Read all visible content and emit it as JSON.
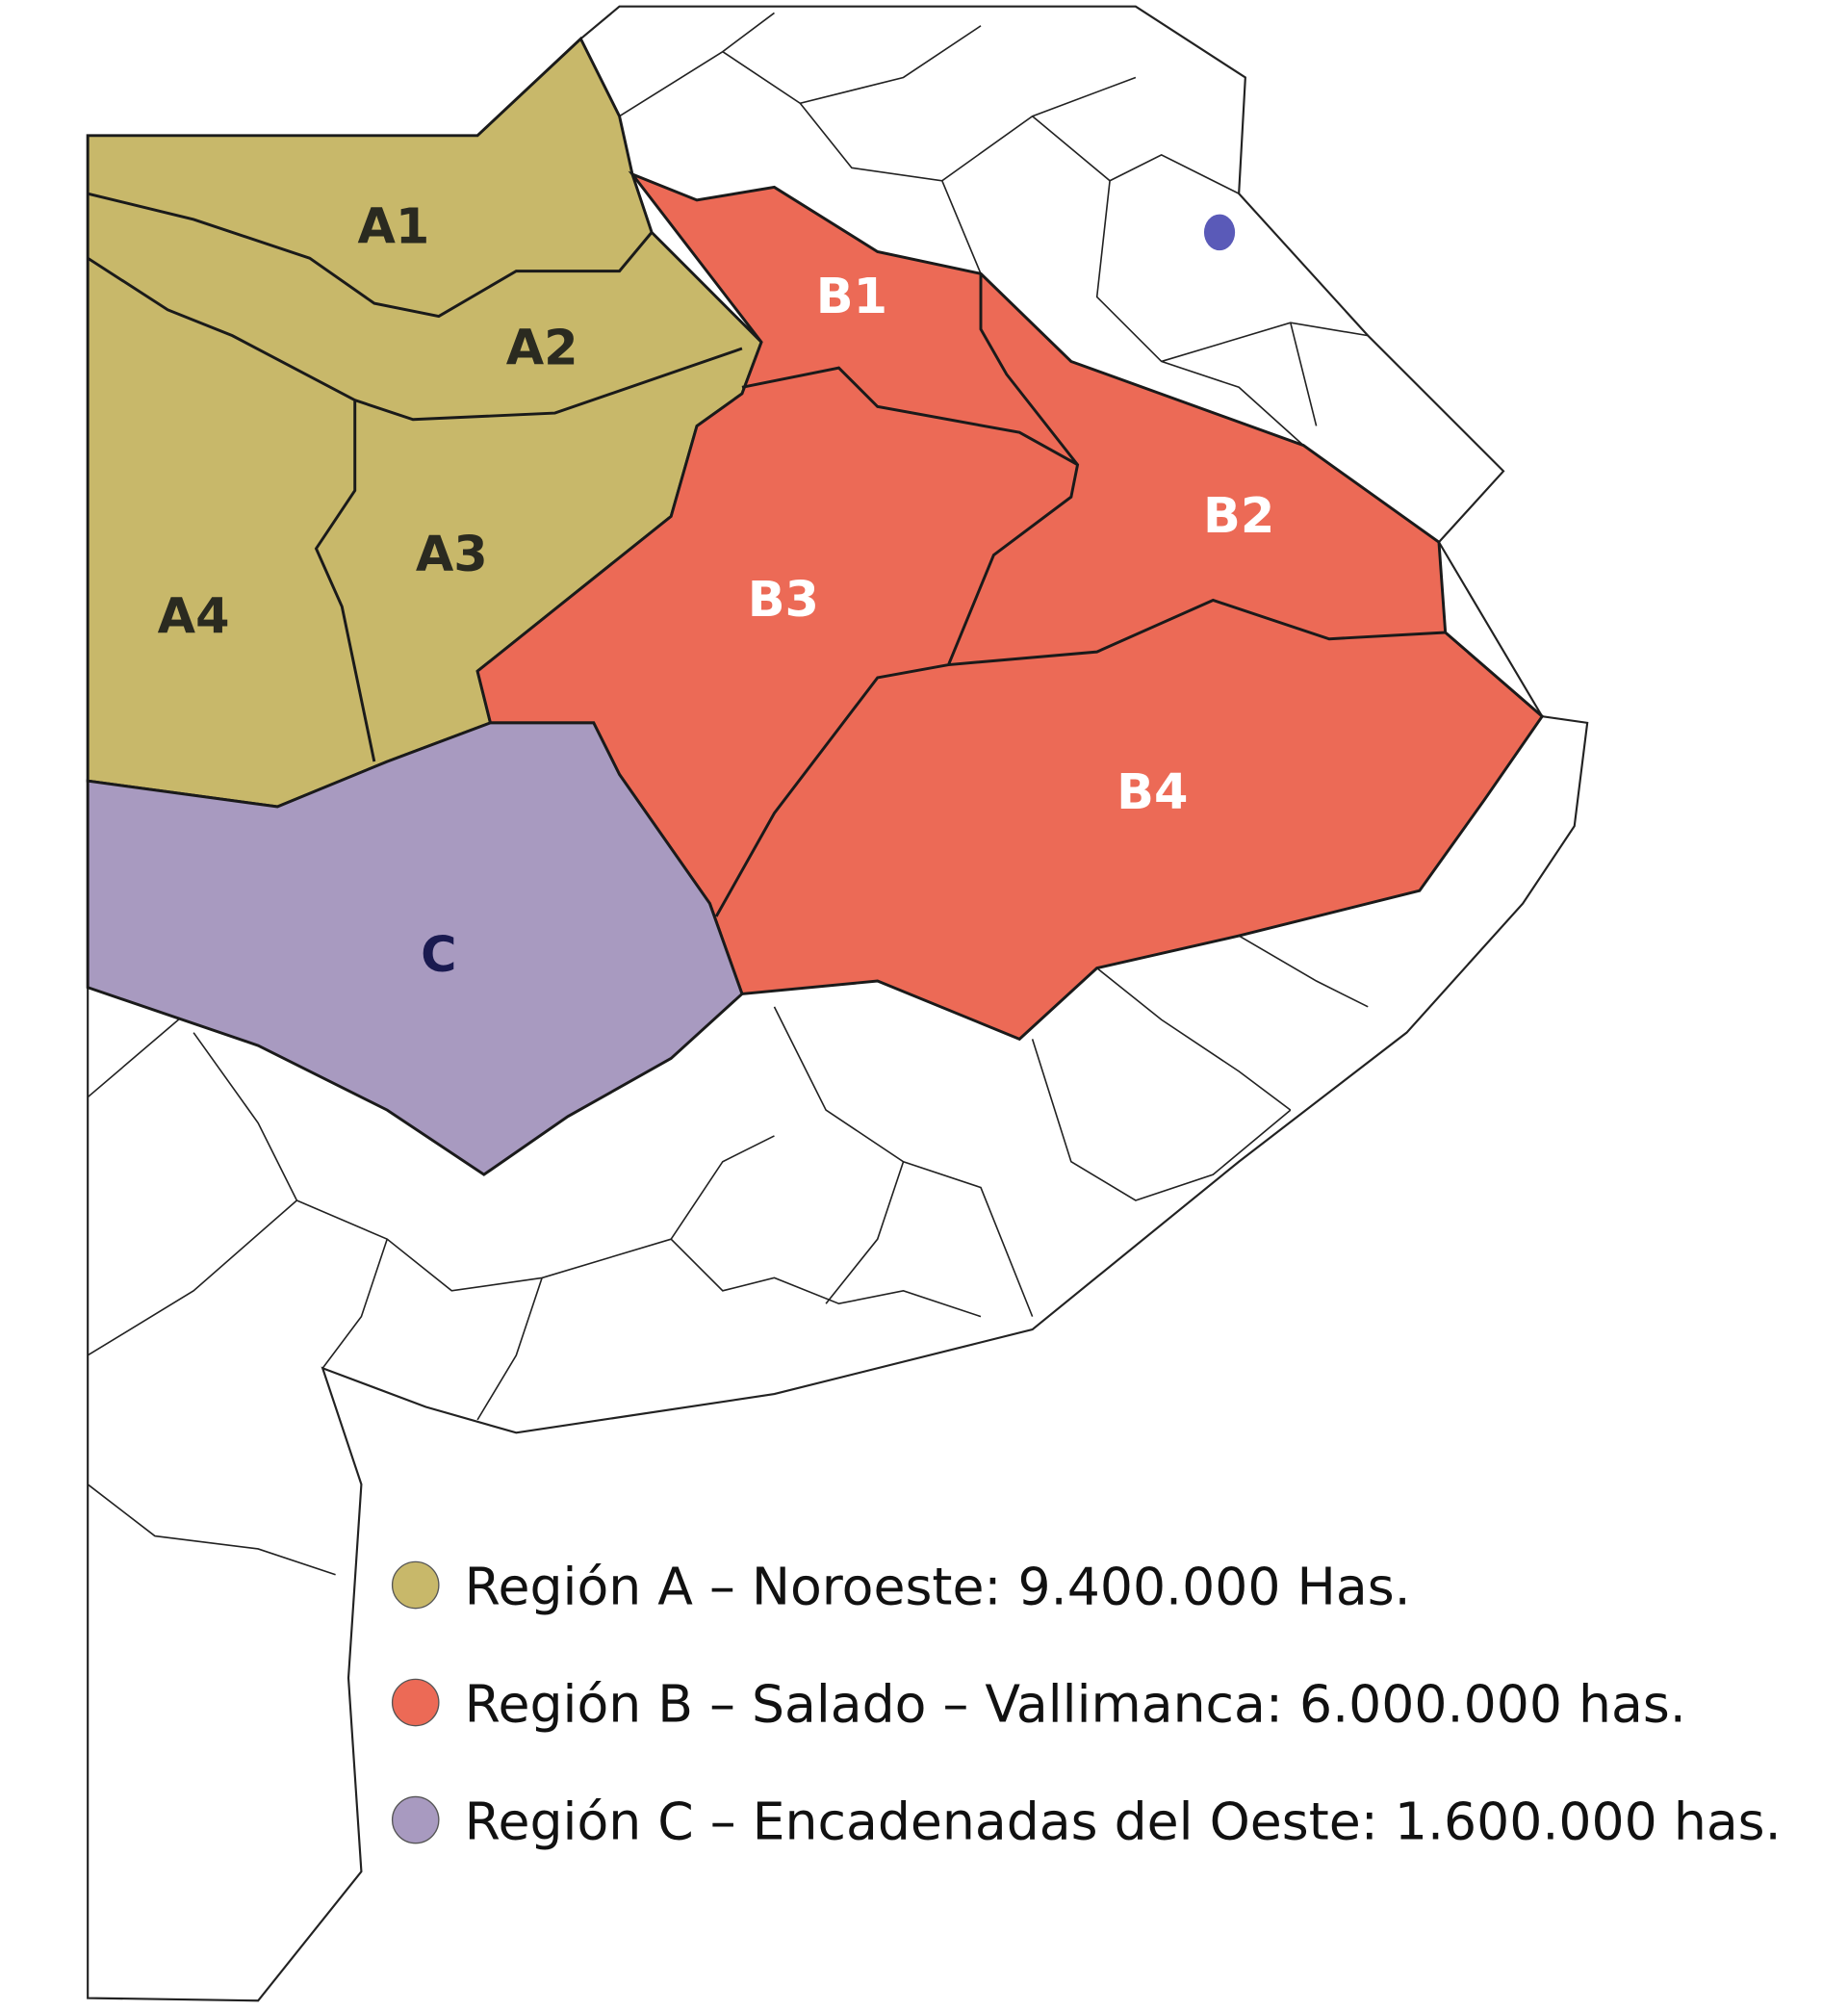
{
  "map": {
    "region_labels": [
      "A1",
      "A2",
      "A3",
      "A4",
      "B1",
      "B2",
      "B3",
      "B4",
      "C"
    ],
    "legend": [
      {
        "text": "Región A – Noroeste: 9.400.000 Has.",
        "color": "#c8b86a"
      },
      {
        "text": "Región B – Salado – Vallimanca: 6.000.000 has.",
        "color": "#ec6a56"
      },
      {
        "text": "Región C – Encadenadas del Oeste: 1.600.000 has.",
        "color": "#a89ac0"
      }
    ]
  }
}
